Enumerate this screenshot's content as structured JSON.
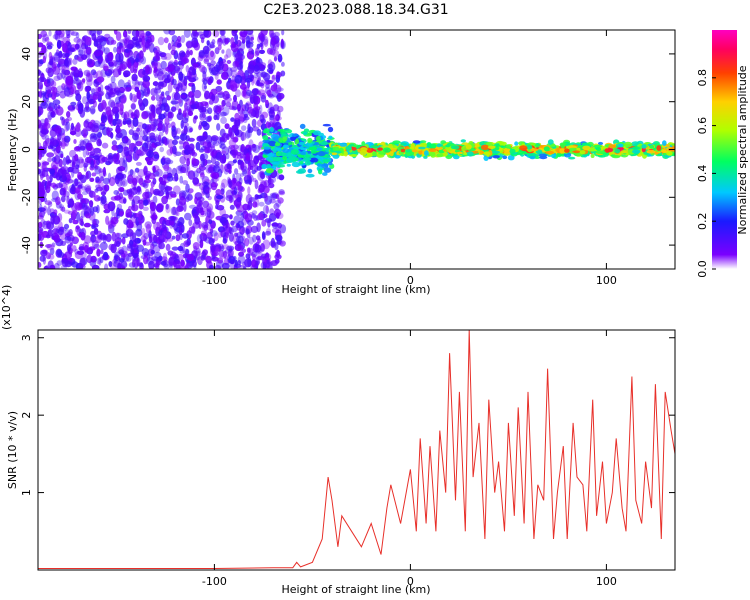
{
  "title": "C2E3.2023.088.18.34.G31",
  "chart_data": [
    {
      "type": "heatmap",
      "xlabel": "Height of straight line (km)",
      "ylabel": "Frequency (Hz)",
      "xlim": [
        -190,
        135
      ],
      "ylim": [
        -50,
        50
      ],
      "xticks": [
        -100,
        0,
        100
      ],
      "xtick_labels": [
        "-100",
        "0",
        "100"
      ],
      "yticks": [
        -40,
        -20,
        0,
        20,
        40
      ],
      "ytick_labels": [
        "-40",
        "-20",
        "0",
        "20",
        "40"
      ],
      "colorbar": {
        "label": "Normalized spectral amplitude",
        "range": [
          0,
          1
        ],
        "ticks": [
          0,
          0.2,
          0.4,
          0.6,
          0.8
        ],
        "tick_labels": [
          "0.0",
          "0.2",
          "0.4",
          "0.6",
          "0.8"
        ],
        "colormap": "rainbow (purple-blue-cyan-green-yellow-red-magenta)"
      },
      "regions": [
        {
          "x_range": [
            -190,
            -65
          ],
          "freq_range": [
            -50,
            50
          ],
          "amplitude_range": [
            0.05,
            0.15
          ],
          "pattern": "scattered noise"
        },
        {
          "x_range": [
            -75,
            -40
          ],
          "freq_range": [
            -12,
            12
          ],
          "amplitude_range": [
            0.2,
            0.5
          ],
          "pattern": "broadening band"
        },
        {
          "x_range": [
            -40,
            135
          ],
          "freq_range": [
            -4,
            4
          ],
          "amplitude_range": [
            0.4,
            0.95
          ],
          "pattern": "narrow band centered at 0 Hz"
        }
      ]
    },
    {
      "type": "line",
      "xlabel": "Height of straight line (km)",
      "ylabel": "SNR (10 * v/v)",
      "y_multiplier": "(x10^4)",
      "xlim": [
        -190,
        135
      ],
      "ylim": [
        0,
        3.1
      ],
      "xticks": [
        -100,
        0,
        100
      ],
      "xtick_labels": [
        "-100",
        "0",
        "100"
      ],
      "yticks": [
        1,
        2,
        3
      ],
      "ytick_labels": [
        "1",
        "2",
        "3"
      ],
      "series": [
        {
          "color": "#e8302a",
          "x": [
            -190,
            -150,
            -100,
            -70,
            -60,
            -58,
            -56,
            -50,
            -45,
            -42,
            -40,
            -37,
            -35,
            -30,
            -25,
            -20,
            -15,
            -12,
            -10,
            -5,
            0,
            3,
            5,
            8,
            10,
            13,
            15,
            18,
            20,
            23,
            25,
            28,
            30,
            32,
            35,
            38,
            40,
            43,
            45,
            48,
            50,
            53,
            55,
            58,
            60,
            63,
            65,
            68,
            70,
            73,
            75,
            78,
            80,
            83,
            85,
            88,
            90,
            93,
            95,
            98,
            100,
            103,
            105,
            108,
            110,
            113,
            115,
            118,
            120,
            123,
            125,
            128,
            130,
            133,
            135
          ],
          "y": [
            0.02,
            0.02,
            0.02,
            0.03,
            0.03,
            0.1,
            0.04,
            0.1,
            0.4,
            1.2,
            0.9,
            0.3,
            0.7,
            0.5,
            0.3,
            0.6,
            0.2,
            0.8,
            1.1,
            0.6,
            1.3,
            0.5,
            1.7,
            0.6,
            1.6,
            0.5,
            1.8,
            1.0,
            2.8,
            0.9,
            2.3,
            0.5,
            3.1,
            1.2,
            1.9,
            0.4,
            2.2,
            1.0,
            1.4,
            0.5,
            1.9,
            0.7,
            2.1,
            0.6,
            2.3,
            0.4,
            1.1,
            0.9,
            2.6,
            0.4,
            1.0,
            1.6,
            0.4,
            1.9,
            1.2,
            1.1,
            0.5,
            2.2,
            0.7,
            1.4,
            0.6,
            1.0,
            1.7,
            0.8,
            0.5,
            2.5,
            0.9,
            0.6,
            1.4,
            0.8,
            2.4,
            0.4,
            2.3,
            1.8,
            1.5
          ]
        }
      ]
    }
  ]
}
